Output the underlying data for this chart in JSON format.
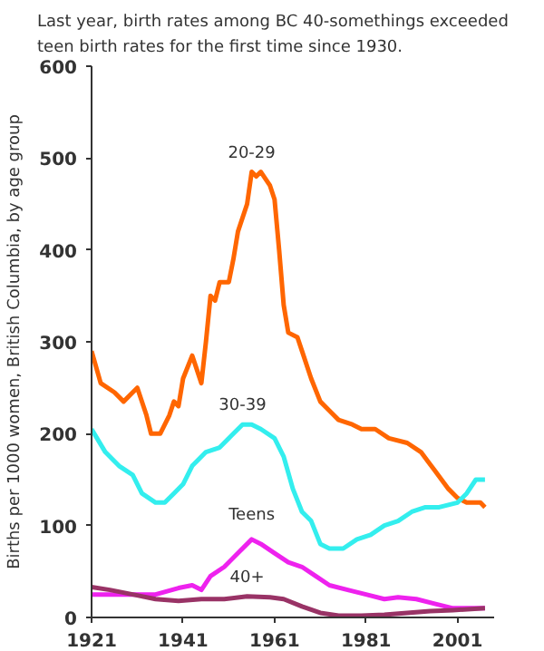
{
  "chart_data": {
    "type": "line",
    "title": "Last year, birth rates among BC 40-somethings exceeded\nteen birth rates for the first time since 1930.",
    "ylabel": "Births per 1000 women, British Columbia, by age group",
    "xlim": [
      1921,
      2009
    ],
    "xticks": [
      1921,
      1941,
      1961,
      1981,
      2001
    ],
    "ylim": [
      0,
      600
    ],
    "yticks": [
      0,
      100,
      200,
      300,
      400,
      500,
      600
    ],
    "grid": false,
    "legend": false,
    "series": [
      {
        "name": "20-29",
        "color": "#ff6600",
        "x": [
          1921,
          1923,
          1926,
          1928,
          1930,
          1931,
          1933,
          1934,
          1936,
          1938,
          1939,
          1940,
          1941,
          1943,
          1944,
          1945,
          1946,
          1947,
          1948,
          1949,
          1951,
          1952,
          1953,
          1955,
          1956,
          1957,
          1958,
          1960,
          1961,
          1962,
          1963,
          1964,
          1966,
          1967,
          1969,
          1971,
          1973,
          1975,
          1978,
          1980,
          1983,
          1986,
          1990,
          1993,
          1996,
          1999,
          2001,
          2003,
          2006,
          2007
        ],
        "values": [
          290,
          255,
          245,
          235,
          245,
          250,
          220,
          200,
          200,
          220,
          235,
          230,
          260,
          285,
          270,
          255,
          300,
          350,
          345,
          365,
          365,
          390,
          420,
          450,
          485,
          480,
          485,
          470,
          455,
          400,
          340,
          310,
          305,
          290,
          260,
          235,
          225,
          215,
          210,
          205,
          205,
          195,
          190,
          180,
          160,
          140,
          130,
          125,
          125,
          120
        ]
      },
      {
        "name": "30-39",
        "color": "#33eeee",
        "x": [
          1921,
          1924,
          1927,
          1930,
          1932,
          1935,
          1937,
          1939,
          1941,
          1943,
          1946,
          1949,
          1952,
          1954,
          1956,
          1958,
          1961,
          1963,
          1965,
          1967,
          1969,
          1971,
          1973,
          1976,
          1979,
          1982,
          1985,
          1988,
          1991,
          1994,
          1997,
          2001,
          2003,
          2005,
          2007
        ],
        "values": [
          205,
          180,
          165,
          155,
          135,
          125,
          125,
          135,
          145,
          165,
          180,
          185,
          200,
          210,
          210,
          205,
          195,
          175,
          140,
          115,
          105,
          80,
          75,
          75,
          85,
          90,
          100,
          105,
          115,
          120,
          120,
          125,
          135,
          150,
          150
        ]
      },
      {
        "name": "Teens",
        "color": "#ee22ee",
        "x": [
          1921,
          1925,
          1930,
          1935,
          1940,
          1943,
          1945,
          1947,
          1950,
          1953,
          1956,
          1958,
          1961,
          1964,
          1967,
          1970,
          1973,
          1977,
          1981,
          1985,
          1988,
          1992,
          1996,
          2000,
          2004,
          2007
        ],
        "values": [
          25,
          25,
          25,
          25,
          32,
          35,
          30,
          45,
          55,
          70,
          85,
          80,
          70,
          60,
          55,
          45,
          35,
          30,
          25,
          20,
          22,
          20,
          15,
          10,
          10,
          10
        ]
      },
      {
        "name": "40+",
        "color": "#993366",
        "x": [
          1921,
          1925,
          1930,
          1935,
          1940,
          1945,
          1950,
          1955,
          1960,
          1963,
          1967,
          1971,
          1975,
          1980,
          1985,
          1990,
          1995,
          2000,
          2007
        ],
        "values": [
          33,
          30,
          25,
          20,
          18,
          20,
          20,
          23,
          22,
          20,
          12,
          5,
          2,
          2,
          3,
          5,
          7,
          8,
          10
        ]
      }
    ]
  }
}
